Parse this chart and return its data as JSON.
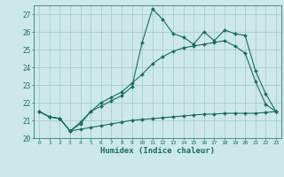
{
  "xlabel": "Humidex (Indice chaleur)",
  "background_color": "#cce8e8",
  "grid_color": "#aacccc",
  "line_color": "#1a6b60",
  "xlim": [
    -0.5,
    23.5
  ],
  "ylim": [
    20.0,
    27.5
  ],
  "yticks": [
    20,
    21,
    22,
    23,
    24,
    25,
    26,
    27
  ],
  "xticks": [
    0,
    1,
    2,
    3,
    4,
    5,
    6,
    7,
    8,
    9,
    10,
    11,
    12,
    13,
    14,
    15,
    16,
    17,
    18,
    19,
    20,
    21,
    22,
    23
  ],
  "line1_x": [
    0,
    1,
    2,
    3,
    4,
    5,
    6,
    7,
    8,
    9,
    10,
    11,
    12,
    13,
    14,
    15,
    16,
    17,
    18,
    19,
    20,
    21,
    22,
    23
  ],
  "line1_y": [
    21.5,
    21.2,
    21.1,
    20.4,
    20.8,
    21.5,
    21.8,
    22.1,
    22.4,
    22.9,
    25.4,
    27.3,
    26.7,
    25.9,
    25.7,
    25.3,
    26.0,
    25.5,
    26.1,
    25.9,
    25.8,
    23.8,
    22.5,
    21.5
  ],
  "line2_x": [
    0,
    1,
    2,
    3,
    4,
    5,
    6,
    7,
    8,
    9,
    10,
    11,
    12,
    13,
    14,
    15,
    16,
    17,
    18,
    19,
    20,
    21,
    22,
    23
  ],
  "line2_y": [
    21.5,
    21.2,
    21.1,
    20.4,
    20.9,
    21.5,
    22.0,
    22.3,
    22.6,
    23.1,
    23.6,
    24.2,
    24.6,
    24.9,
    25.1,
    25.2,
    25.3,
    25.4,
    25.5,
    25.2,
    24.8,
    23.2,
    21.9,
    21.5
  ],
  "line3_x": [
    0,
    1,
    2,
    3,
    4,
    5,
    6,
    7,
    8,
    9,
    10,
    11,
    12,
    13,
    14,
    15,
    16,
    17,
    18,
    19,
    20,
    21,
    22,
    23
  ],
  "line3_y": [
    21.5,
    21.2,
    21.1,
    20.4,
    20.5,
    20.6,
    20.7,
    20.8,
    20.9,
    21.0,
    21.05,
    21.1,
    21.15,
    21.2,
    21.25,
    21.3,
    21.35,
    21.35,
    21.4,
    21.4,
    21.4,
    21.4,
    21.45,
    21.5
  ]
}
